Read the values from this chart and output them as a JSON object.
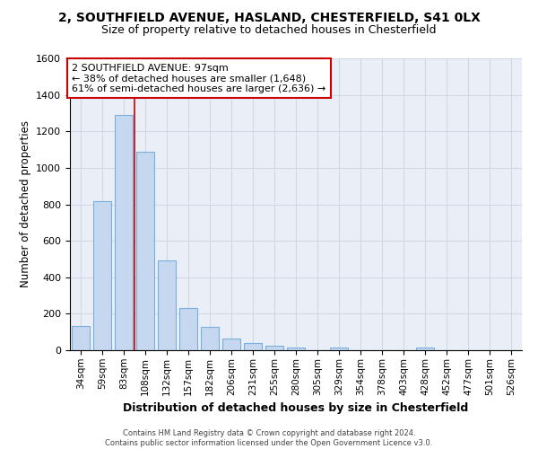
{
  "title_line1": "2, SOUTHFIELD AVENUE, HASLAND, CHESTERFIELD, S41 0LX",
  "title_line2": "Size of property relative to detached houses in Chesterfield",
  "xlabel": "Distribution of detached houses by size in Chesterfield",
  "ylabel": "Number of detached properties",
  "all_categories": [
    "34sqm",
    "59sqm",
    "83sqm",
    "108sqm",
    "132sqm",
    "157sqm",
    "182sqm",
    "206sqm",
    "231sqm",
    "255sqm",
    "280sqm",
    "305sqm",
    "329sqm",
    "354sqm",
    "378sqm",
    "403sqm",
    "428sqm",
    "452sqm",
    "477sqm",
    "501sqm",
    "526sqm"
  ],
  "bar_heights": [
    135,
    815,
    1290,
    1090,
    490,
    230,
    130,
    65,
    38,
    27,
    14,
    0,
    14,
    0,
    0,
    0,
    14,
    0,
    0,
    0,
    0
  ],
  "bar_color": "#c5d8ef",
  "bar_edge_color": "#7aaedb",
  "vline_x": 2.5,
  "vline_color": "#cc0000",
  "annotation_line1": "2 SOUTHFIELD AVENUE: 97sqm",
  "annotation_line2": "← 38% of detached houses are smaller (1,648)",
  "annotation_line3": "61% of semi-detached houses are larger (2,636) →",
  "annotation_box_color": "#cc0000",
  "ylim_max": 1600,
  "yticks": [
    0,
    200,
    400,
    600,
    800,
    1000,
    1200,
    1400,
    1600
  ],
  "grid_color": "#d0d8e8",
  "bg_color": "#eaeff7",
  "footer_line1": "Contains HM Land Registry data © Crown copyright and database right 2024.",
  "footer_line2": "Contains public sector information licensed under the Open Government Licence v3.0."
}
